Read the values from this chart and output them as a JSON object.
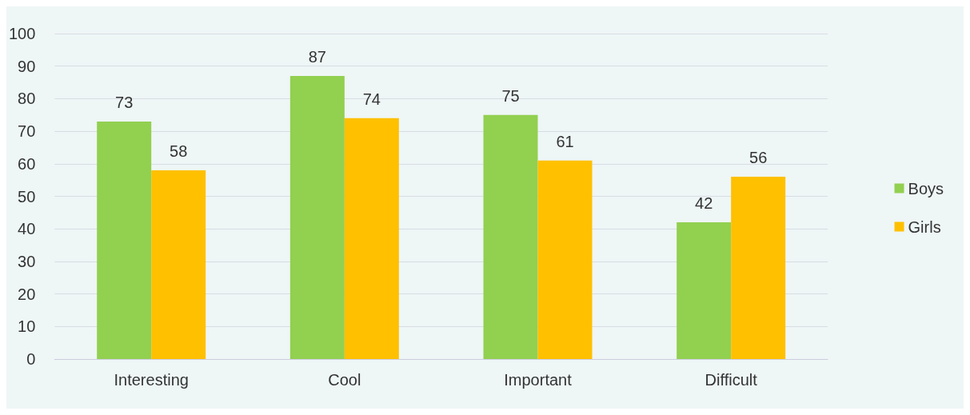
{
  "chart_data": {
    "type": "bar",
    "categories": [
      "Interesting",
      "Cool",
      "Important",
      "Difficult"
    ],
    "series": [
      {
        "name": "Boys",
        "color": "#92d050",
        "values": [
          73,
          87,
          75,
          42
        ]
      },
      {
        "name": "Girls",
        "color": "#ffc000",
        "values": [
          58,
          74,
          61,
          56
        ]
      }
    ],
    "ylim": [
      0,
      100
    ],
    "yticks": [
      0,
      10,
      20,
      30,
      40,
      50,
      60,
      70,
      80,
      90,
      100
    ],
    "grid": "y",
    "legend": "right",
    "data_labels": true
  }
}
